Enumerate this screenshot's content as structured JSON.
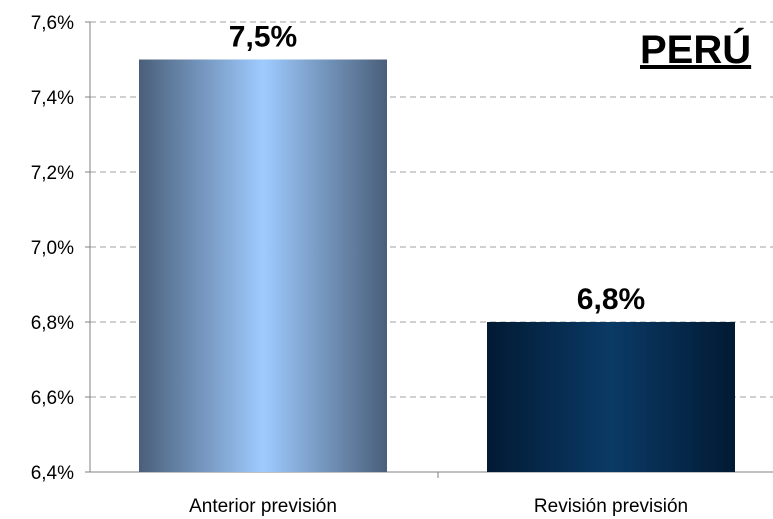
{
  "chart_data": {
    "type": "bar",
    "title": "PERÚ",
    "categories": [
      "Anterior previsión",
      "Revisión previsión"
    ],
    "values": [
      7.5,
      6.8
    ],
    "data_labels": [
      "7,5%",
      "6,8%"
    ],
    "ylim": [
      6.4,
      7.6
    ],
    "yticks": [
      6.4,
      6.6,
      6.8,
      7.0,
      7.2,
      7.4,
      7.6
    ],
    "ytick_labels": [
      "6,4%",
      "6,6%",
      "6,8%",
      "7,0%",
      "7,2%",
      "7,4%",
      "7,6%"
    ],
    "xlabel": "",
    "ylabel": "",
    "grid": true,
    "legend": "none",
    "colors": {
      "bar1_edge": "#4a5f7a",
      "bar1_center": "#9ecbff",
      "bar2_edge": "#021a33",
      "bar2_center": "#0a3a66",
      "grid": "#a0a0a0",
      "axis": "#808080"
    }
  }
}
